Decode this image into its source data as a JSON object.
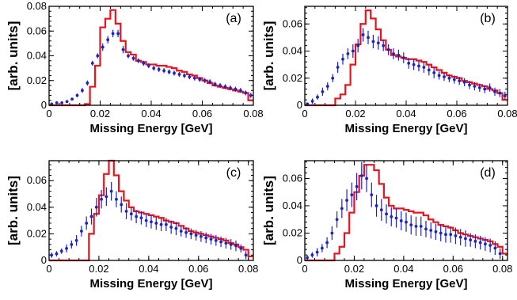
{
  "colors": {
    "histogram": "#e8141c",
    "data_points": "#1a22c8",
    "frame": "#000000"
  },
  "chart_data": [
    {
      "type": "scatter",
      "panel_label": "(a)",
      "xlabel": "Missing Energy [GeV]",
      "ylabel": "[arb. units]",
      "xlim": [
        0,
        0.08
      ],
      "ylim": [
        0,
        0.08
      ],
      "xticks": [
        {
          "v": 0,
          "t": "0"
        },
        {
          "v": 0.02,
          "t": "0.02"
        },
        {
          "v": 0.04,
          "t": "0.04"
        },
        {
          "v": 0.06,
          "t": "0.06"
        },
        {
          "v": 0.08,
          "t": "0.08"
        }
      ],
      "yticks": [
        {
          "v": 0,
          "t": "0"
        },
        {
          "v": 0.02,
          "t": "0.02"
        },
        {
          "v": 0.04,
          "t": "0.04"
        },
        {
          "v": 0.06,
          "t": "0.06"
        },
        {
          "v": 0.08,
          "t": "0.08"
        }
      ],
      "histogram": {
        "bin_edges": [
          0,
          0.002,
          0.004,
          0.006,
          0.008,
          0.01,
          0.012,
          0.014,
          0.016,
          0.018,
          0.02,
          0.022,
          0.024,
          0.026,
          0.028,
          0.03,
          0.032,
          0.034,
          0.036,
          0.038,
          0.04,
          0.042,
          0.044,
          0.046,
          0.048,
          0.05,
          0.052,
          0.054,
          0.056,
          0.058,
          0.06,
          0.062,
          0.064,
          0.066,
          0.068,
          0.07,
          0.072,
          0.074,
          0.076,
          0.078,
          0.08
        ],
        "values": [
          0,
          0,
          0,
          0,
          0,
          0,
          0,
          0.001,
          0.015,
          0.032,
          0.063,
          0.07,
          0.077,
          0.066,
          0.052,
          0.043,
          0.041,
          0.036,
          0.035,
          0.033,
          0.033,
          0.032,
          0.032,
          0.031,
          0.03,
          0.028,
          0.027,
          0.025,
          0.024,
          0.022,
          0.02,
          0.018,
          0.016,
          0.015,
          0.014,
          0.013,
          0.012,
          0.011,
          0.01,
          0.004
        ]
      },
      "points": {
        "x": [
          0.001,
          0.003,
          0.005,
          0.007,
          0.009,
          0.011,
          0.013,
          0.015,
          0.017,
          0.019,
          0.021,
          0.023,
          0.025,
          0.027,
          0.029,
          0.031,
          0.033,
          0.035,
          0.037,
          0.039,
          0.041,
          0.043,
          0.045,
          0.047,
          0.049,
          0.051,
          0.053,
          0.055,
          0.057,
          0.059,
          0.061,
          0.063,
          0.065,
          0.067,
          0.069,
          0.071,
          0.073,
          0.075,
          0.077,
          0.079
        ],
        "y": [
          0.001,
          0.002,
          0.002,
          0.003,
          0.005,
          0.008,
          0.012,
          0.018,
          0.034,
          0.04,
          0.047,
          0.053,
          0.058,
          0.058,
          0.045,
          0.04,
          0.038,
          0.036,
          0.034,
          0.032,
          0.03,
          0.029,
          0.028,
          0.027,
          0.026,
          0.025,
          0.024,
          0.023,
          0.022,
          0.021,
          0.02,
          0.019,
          0.017,
          0.016,
          0.015,
          0.014,
          0.013,
          0.012,
          0.01,
          0.008
        ],
        "err": [
          0.001,
          0.001,
          0.001,
          0.001,
          0.001,
          0.0015,
          0.002,
          0.002,
          0.002,
          0.002,
          0.003,
          0.003,
          0.003,
          0.003,
          0.003,
          0.002,
          0.002,
          0.002,
          0.002,
          0.002,
          0.002,
          0.002,
          0.002,
          0.002,
          0.002,
          0.002,
          0.002,
          0.002,
          0.002,
          0.002,
          0.002,
          0.002,
          0.002,
          0.002,
          0.002,
          0.002,
          0.002,
          0.002,
          0.002,
          0.002
        ]
      }
    },
    {
      "type": "scatter",
      "panel_label": "(b)",
      "xlabel": "Missing Energy [GeV]",
      "ylabel": "[arb. units]",
      "xlim": [
        0,
        0.08
      ],
      "ylim": [
        0,
        0.073
      ],
      "xticks": [
        {
          "v": 0,
          "t": "0"
        },
        {
          "v": 0.02,
          "t": "0.02"
        },
        {
          "v": 0.04,
          "t": "0.04"
        },
        {
          "v": 0.06,
          "t": "0.06"
        },
        {
          "v": 0.08,
          "t": "0.08"
        }
      ],
      "yticks": [
        {
          "v": 0,
          "t": "0"
        },
        {
          "v": 0.02,
          "t": "0.02"
        },
        {
          "v": 0.04,
          "t": "0.04"
        },
        {
          "v": 0.06,
          "t": "0.06"
        }
      ],
      "histogram": {
        "bin_edges": [
          0,
          0.002,
          0.004,
          0.006,
          0.008,
          0.01,
          0.012,
          0.014,
          0.016,
          0.018,
          0.02,
          0.022,
          0.024,
          0.026,
          0.028,
          0.03,
          0.032,
          0.034,
          0.036,
          0.038,
          0.04,
          0.042,
          0.044,
          0.046,
          0.048,
          0.05,
          0.052,
          0.054,
          0.056,
          0.058,
          0.06,
          0.062,
          0.064,
          0.066,
          0.068,
          0.07,
          0.072,
          0.074,
          0.076,
          0.078,
          0.08
        ],
        "values": [
          0,
          0,
          0,
          0,
          0,
          0,
          0.005,
          0.008,
          0.015,
          0.03,
          0.045,
          0.06,
          0.07,
          0.064,
          0.056,
          0.048,
          0.041,
          0.037,
          0.036,
          0.035,
          0.034,
          0.034,
          0.033,
          0.032,
          0.03,
          0.028,
          0.026,
          0.024,
          0.022,
          0.021,
          0.02,
          0.018,
          0.017,
          0.016,
          0.015,
          0.014,
          0.012,
          0.011,
          0.009,
          0.004
        ]
      },
      "points": {
        "x": [
          0.001,
          0.003,
          0.005,
          0.007,
          0.009,
          0.011,
          0.013,
          0.015,
          0.017,
          0.019,
          0.021,
          0.023,
          0.025,
          0.027,
          0.029,
          0.031,
          0.033,
          0.035,
          0.037,
          0.039,
          0.041,
          0.043,
          0.045,
          0.047,
          0.049,
          0.051,
          0.053,
          0.055,
          0.057,
          0.059,
          0.061,
          0.063,
          0.065,
          0.067,
          0.069,
          0.071,
          0.073,
          0.075,
          0.077,
          0.079
        ],
        "y": [
          0.001,
          0.003,
          0.006,
          0.01,
          0.014,
          0.02,
          0.028,
          0.034,
          0.038,
          0.04,
          0.044,
          0.052,
          0.05,
          0.047,
          0.046,
          0.044,
          0.041,
          0.038,
          0.037,
          0.035,
          0.031,
          0.03,
          0.029,
          0.028,
          0.026,
          0.024,
          0.022,
          0.021,
          0.02,
          0.019,
          0.018,
          0.017,
          0.015,
          0.014,
          0.013,
          0.012,
          0.013,
          0.01,
          0.009,
          0.007
        ],
        "err": [
          0.001,
          0.002,
          0.002,
          0.003,
          0.003,
          0.003,
          0.004,
          0.004,
          0.004,
          0.005,
          0.005,
          0.005,
          0.005,
          0.005,
          0.005,
          0.004,
          0.004,
          0.004,
          0.004,
          0.004,
          0.004,
          0.004,
          0.004,
          0.004,
          0.004,
          0.004,
          0.003,
          0.003,
          0.003,
          0.003,
          0.003,
          0.003,
          0.003,
          0.003,
          0.003,
          0.003,
          0.003,
          0.003,
          0.003,
          0.003
        ]
      }
    },
    {
      "type": "scatter",
      "panel_label": "(c)",
      "xlabel": "Missing Energy [GeV]",
      "ylabel": "[arb. units]",
      "xlim": [
        0,
        0.082
      ],
      "ylim": [
        0,
        0.075
      ],
      "xticks": [
        {
          "v": 0,
          "t": "0"
        },
        {
          "v": 0.02,
          "t": "0.02"
        },
        {
          "v": 0.04,
          "t": "0.04"
        },
        {
          "v": 0.06,
          "t": "0.06"
        },
        {
          "v": 0.08,
          "t": "0.08"
        }
      ],
      "yticks": [
        {
          "v": 0,
          "t": "0"
        },
        {
          "v": 0.02,
          "t": "0.02"
        },
        {
          "v": 0.04,
          "t": "0.04"
        },
        {
          "v": 0.06,
          "t": "0.06"
        }
      ],
      "histogram": {
        "bin_edges": [
          0,
          0.002,
          0.004,
          0.006,
          0.008,
          0.01,
          0.012,
          0.014,
          0.016,
          0.018,
          0.02,
          0.022,
          0.024,
          0.026,
          0.028,
          0.03,
          0.032,
          0.034,
          0.036,
          0.038,
          0.04,
          0.042,
          0.044,
          0.046,
          0.048,
          0.05,
          0.052,
          0.054,
          0.056,
          0.058,
          0.06,
          0.062,
          0.064,
          0.066,
          0.068,
          0.07,
          0.072,
          0.074,
          0.076,
          0.078,
          0.08,
          0.082
        ],
        "values": [
          0,
          0,
          0,
          0,
          0,
          0,
          0,
          0,
          0.02,
          0.035,
          0.049,
          0.065,
          0.075,
          0.064,
          0.052,
          0.045,
          0.04,
          0.037,
          0.036,
          0.035,
          0.034,
          0.033,
          0.032,
          0.03,
          0.029,
          0.028,
          0.026,
          0.024,
          0.022,
          0.021,
          0.02,
          0.019,
          0.018,
          0.017,
          0.016,
          0.015,
          0.013,
          0.012,
          0.01,
          0.008,
          0.003
        ]
      },
      "points": {
        "x": [
          0.001,
          0.003,
          0.005,
          0.007,
          0.009,
          0.011,
          0.013,
          0.015,
          0.017,
          0.019,
          0.021,
          0.023,
          0.025,
          0.027,
          0.029,
          0.031,
          0.033,
          0.035,
          0.037,
          0.039,
          0.041,
          0.043,
          0.045,
          0.047,
          0.049,
          0.051,
          0.053,
          0.055,
          0.057,
          0.059,
          0.061,
          0.063,
          0.065,
          0.067,
          0.069,
          0.071,
          0.073,
          0.075,
          0.077,
          0.079
        ],
        "y": [
          0.004,
          0.005,
          0.007,
          0.009,
          0.012,
          0.015,
          0.022,
          0.028,
          0.033,
          0.04,
          0.046,
          0.048,
          0.052,
          0.046,
          0.042,
          0.037,
          0.035,
          0.033,
          0.032,
          0.03,
          0.029,
          0.028,
          0.027,
          0.027,
          0.025,
          0.024,
          0.022,
          0.021,
          0.02,
          0.019,
          0.018,
          0.017,
          0.016,
          0.015,
          0.014,
          0.013,
          0.012,
          0.011,
          0.009,
          0.004
        ],
        "err": [
          0.002,
          0.002,
          0.002,
          0.003,
          0.003,
          0.004,
          0.004,
          0.005,
          0.006,
          0.007,
          0.007,
          0.007,
          0.007,
          0.006,
          0.006,
          0.006,
          0.005,
          0.005,
          0.005,
          0.005,
          0.005,
          0.005,
          0.005,
          0.005,
          0.005,
          0.005,
          0.004,
          0.004,
          0.004,
          0.004,
          0.004,
          0.004,
          0.004,
          0.004,
          0.004,
          0.004,
          0.004,
          0.004,
          0.003,
          0.003
        ]
      }
    },
    {
      "type": "scatter",
      "panel_label": "(d)",
      "xlabel": "Missing Energy [GeV]",
      "ylabel": "[arb. units]",
      "xlim": [
        0,
        0.082
      ],
      "ylim": [
        0,
        0.073
      ],
      "xticks": [
        {
          "v": 0,
          "t": "0"
        },
        {
          "v": 0.02,
          "t": "0.02"
        },
        {
          "v": 0.04,
          "t": "0.04"
        },
        {
          "v": 0.06,
          "t": "0.06"
        },
        {
          "v": 0.08,
          "t": "0.08"
        }
      ],
      "yticks": [
        {
          "v": 0,
          "t": "0"
        },
        {
          "v": 0.02,
          "t": "0.02"
        },
        {
          "v": 0.04,
          "t": "0.04"
        },
        {
          "v": 0.06,
          "t": "0.06"
        }
      ],
      "histogram": {
        "bin_edges": [
          0,
          0.002,
          0.004,
          0.006,
          0.008,
          0.01,
          0.012,
          0.014,
          0.016,
          0.018,
          0.02,
          0.022,
          0.024,
          0.026,
          0.028,
          0.03,
          0.032,
          0.034,
          0.036,
          0.038,
          0.04,
          0.042,
          0.044,
          0.046,
          0.048,
          0.05,
          0.052,
          0.054,
          0.056,
          0.058,
          0.06,
          0.062,
          0.064,
          0.066,
          0.068,
          0.07,
          0.072,
          0.074,
          0.076,
          0.078,
          0.08,
          0.082
        ],
        "values": [
          0,
          0,
          0,
          0,
          0,
          0,
          0.005,
          0.01,
          0.02,
          0.035,
          0.05,
          0.062,
          0.07,
          0.07,
          0.066,
          0.056,
          0.046,
          0.04,
          0.038,
          0.038,
          0.037,
          0.036,
          0.035,
          0.035,
          0.033,
          0.03,
          0.028,
          0.026,
          0.025,
          0.024,
          0.022,
          0.02,
          0.019,
          0.018,
          0.017,
          0.016,
          0.015,
          0.014,
          0.012,
          0.01,
          0.005
        ]
      },
      "points": {
        "x": [
          0.001,
          0.003,
          0.005,
          0.007,
          0.009,
          0.011,
          0.013,
          0.015,
          0.017,
          0.019,
          0.021,
          0.023,
          0.025,
          0.027,
          0.029,
          0.031,
          0.033,
          0.035,
          0.037,
          0.039,
          0.041,
          0.043,
          0.045,
          0.047,
          0.049,
          0.051,
          0.053,
          0.055,
          0.057,
          0.059,
          0.061,
          0.063,
          0.065,
          0.067,
          0.069,
          0.071,
          0.073,
          0.075,
          0.077,
          0.079
        ],
        "y": [
          0.002,
          0.004,
          0.006,
          0.009,
          0.013,
          0.02,
          0.03,
          0.038,
          0.044,
          0.048,
          0.054,
          0.062,
          0.06,
          0.048,
          0.04,
          0.037,
          0.034,
          0.032,
          0.031,
          0.029,
          0.028,
          0.026,
          0.025,
          0.025,
          0.023,
          0.022,
          0.021,
          0.02,
          0.019,
          0.019,
          0.018,
          0.017,
          0.016,
          0.015,
          0.014,
          0.013,
          0.012,
          0.011,
          0.009,
          0.005
        ],
        "err": [
          0.002,
          0.002,
          0.003,
          0.003,
          0.004,
          0.005,
          0.006,
          0.007,
          0.008,
          0.009,
          0.01,
          0.01,
          0.01,
          0.009,
          0.008,
          0.008,
          0.007,
          0.007,
          0.007,
          0.007,
          0.007,
          0.007,
          0.007,
          0.007,
          0.006,
          0.006,
          0.006,
          0.006,
          0.006,
          0.006,
          0.006,
          0.006,
          0.006,
          0.005,
          0.005,
          0.005,
          0.005,
          0.005,
          0.005,
          0.004
        ]
      }
    }
  ]
}
